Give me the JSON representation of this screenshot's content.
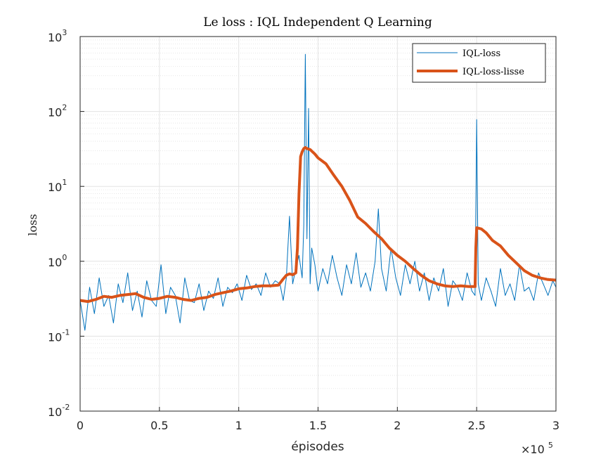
{
  "chart_data": {
    "type": "line",
    "title": "Le loss : IQL Independent Q Learning",
    "xlabel": "épisodes",
    "ylabel": "loss",
    "xlim": [
      0,
      300000
    ],
    "ylim": [
      0.01,
      1000
    ],
    "yscale": "log",
    "grid": true,
    "minor_grid": true,
    "legend_position": "top-right",
    "x_tick_labels": [
      "0",
      "0.5",
      "1",
      "1.5",
      "2",
      "2.5",
      "3"
    ],
    "x_multiplier": {
      "base": "×10",
      "exponent": "5"
    },
    "y_tick_labels": [
      {
        "base": "10",
        "exponent": "-2"
      },
      {
        "base": "10",
        "exponent": "-1"
      },
      {
        "base": "10",
        "exponent": "0"
      },
      {
        "base": "10",
        "exponent": "1"
      },
      {
        "base": "10",
        "exponent": "2"
      },
      {
        "base": "10",
        "exponent": "3"
      }
    ],
    "series": [
      {
        "name": "IQL-loss",
        "color": "#0072BD",
        "line_width": "thin",
        "note": "noisy raw loss",
        "x": [
          0,
          3000,
          6000,
          9000,
          12000,
          15000,
          18000,
          21000,
          24000,
          27000,
          30000,
          33000,
          36000,
          39000,
          42000,
          45000,
          48000,
          51000,
          54000,
          57000,
          60000,
          63000,
          66000,
          69000,
          72000,
          75000,
          78000,
          81000,
          84000,
          87000,
          90000,
          93000,
          96000,
          99000,
          102000,
          105000,
          108000,
          111000,
          114000,
          117000,
          120000,
          123000,
          126000,
          128000,
          130000,
          132000,
          134000,
          136000,
          138000,
          140000,
          141000,
          142000,
          143000,
          144000,
          145000,
          146000,
          148000,
          150000,
          153000,
          156000,
          159000,
          162000,
          165000,
          168000,
          171000,
          174000,
          177000,
          180000,
          183000,
          186000,
          188000,
          190000,
          193000,
          196000,
          199000,
          202000,
          205000,
          208000,
          211000,
          214000,
          217000,
          220000,
          223000,
          226000,
          229000,
          232000,
          235000,
          238000,
          241000,
          244000,
          247000,
          249000,
          250000,
          251000,
          253000,
          256000,
          259000,
          262000,
          265000,
          268000,
          271000,
          274000,
          277000,
          280000,
          283000,
          286000,
          289000,
          292000,
          295000,
          298000,
          300000
        ],
        "y": [
          0.3,
          0.12,
          0.45,
          0.2,
          0.6,
          0.25,
          0.35,
          0.15,
          0.5,
          0.28,
          0.7,
          0.22,
          0.4,
          0.18,
          0.55,
          0.3,
          0.25,
          0.9,
          0.2,
          0.45,
          0.35,
          0.15,
          0.6,
          0.3,
          0.28,
          0.5,
          0.22,
          0.4,
          0.32,
          0.6,
          0.25,
          0.45,
          0.38,
          0.5,
          0.3,
          0.65,
          0.42,
          0.5,
          0.35,
          0.7,
          0.45,
          0.55,
          0.5,
          0.3,
          0.6,
          4.0,
          0.5,
          0.8,
          1.2,
          0.6,
          3.0,
          580,
          2.0,
          110,
          0.5,
          1.5,
          0.9,
          0.4,
          0.8,
          0.5,
          1.2,
          0.6,
          0.35,
          0.9,
          0.5,
          1.3,
          0.45,
          0.7,
          0.4,
          1.0,
          5.0,
          0.8,
          0.4,
          1.5,
          0.6,
          0.35,
          0.9,
          0.5,
          1.0,
          0.4,
          0.7,
          0.3,
          0.6,
          0.4,
          0.8,
          0.25,
          0.55,
          0.45,
          0.3,
          0.7,
          0.4,
          0.35,
          78,
          0.5,
          0.3,
          0.6,
          0.4,
          0.25,
          0.8,
          0.35,
          0.5,
          0.3,
          0.9,
          0.4,
          0.45,
          0.3,
          0.7,
          0.5,
          0.35,
          0.55,
          0.45
        ]
      },
      {
        "name": "IQL-loss-lisse",
        "color": "#D95319",
        "line_width": "thick",
        "note": "smoothed loss",
        "x": [
          0,
          5000,
          10000,
          15000,
          20000,
          25000,
          30000,
          35000,
          40000,
          45000,
          50000,
          55000,
          60000,
          65000,
          70000,
          75000,
          80000,
          85000,
          90000,
          95000,
          100000,
          105000,
          110000,
          115000,
          120000,
          125000,
          128000,
          130000,
          132000,
          134000,
          136000,
          137000,
          138000,
          139000,
          140000,
          141000,
          142000,
          143000,
          145000,
          148000,
          150000,
          155000,
          160000,
          165000,
          170000,
          175000,
          180000,
          185000,
          190000,
          195000,
          200000,
          205000,
          210000,
          215000,
          220000,
          225000,
          230000,
          235000,
          240000,
          245000,
          249000,
          249500,
          250000,
          253000,
          256000,
          260000,
          265000,
          270000,
          275000,
          280000,
          285000,
          290000,
          295000,
          300000
        ],
        "y": [
          0.3,
          0.29,
          0.31,
          0.34,
          0.33,
          0.35,
          0.36,
          0.37,
          0.33,
          0.31,
          0.32,
          0.34,
          0.33,
          0.31,
          0.3,
          0.32,
          0.33,
          0.36,
          0.38,
          0.4,
          0.43,
          0.44,
          0.46,
          0.47,
          0.47,
          0.48,
          0.58,
          0.65,
          0.68,
          0.66,
          0.7,
          1.5,
          8.0,
          25,
          29,
          32,
          33,
          32,
          31,
          27,
          24,
          20,
          14,
          10,
          6.5,
          3.9,
          3.2,
          2.5,
          2.0,
          1.5,
          1.2,
          1.0,
          0.8,
          0.65,
          0.55,
          0.5,
          0.47,
          0.46,
          0.47,
          0.46,
          0.46,
          1.5,
          2.8,
          2.7,
          2.4,
          1.9,
          1.6,
          1.2,
          0.95,
          0.75,
          0.65,
          0.6,
          0.57,
          0.56
        ]
      }
    ]
  }
}
